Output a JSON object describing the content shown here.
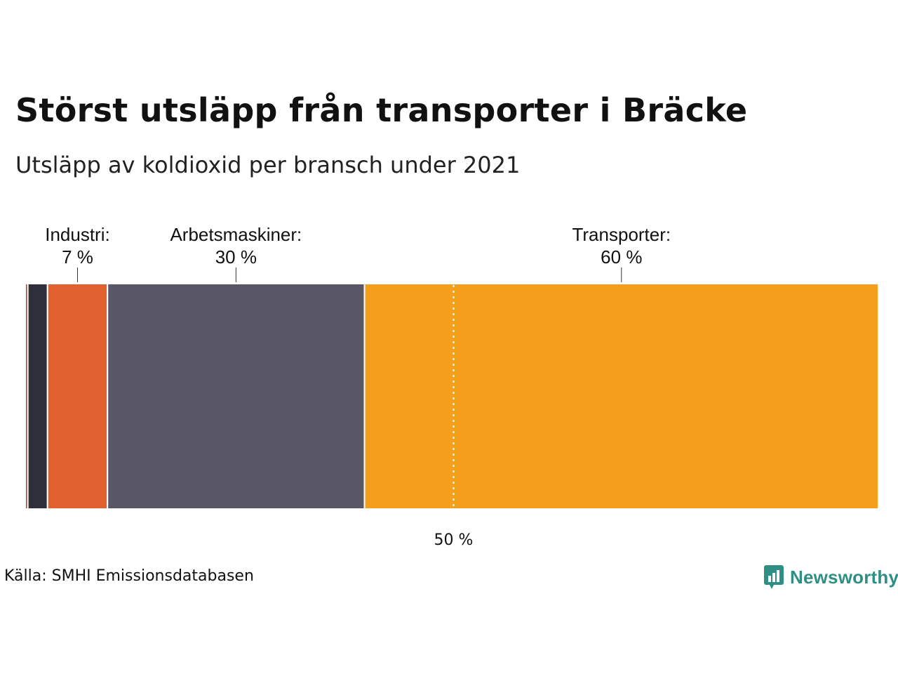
{
  "title": "Störst utsläpp från transporter i Bräcke",
  "subtitle": "Utsläpp av koldioxid per bransch under 2021",
  "source": "Källa: SMHI Emissionsdatabasen",
  "brand": {
    "name": "Newsworthy",
    "icon": "newsworthy-logo-icon",
    "color": "#2f8f84"
  },
  "chart_data": {
    "type": "bar",
    "orientation": "horizontal-stacked",
    "unit": "%",
    "segments": [
      {
        "name": "",
        "value": 0.3,
        "color": "#c0392b"
      },
      {
        "name": "",
        "value": 2.3,
        "color": "#2f2f3c"
      },
      {
        "name": "Industri:",
        "value": 7,
        "label": "7 %",
        "color": "#e0602e"
      },
      {
        "name": "Arbetsmaskiner:",
        "value": 30,
        "label": "30 %",
        "color": "#595766"
      },
      {
        "name": "Transporter:",
        "value": 60,
        "label": "60 %",
        "color": "#f59e1b"
      }
    ],
    "reference_line": {
      "value": 50,
      "label": "50 %",
      "style": "dotted",
      "color": "#ffffff"
    },
    "xlim": [
      0,
      100
    ]
  }
}
